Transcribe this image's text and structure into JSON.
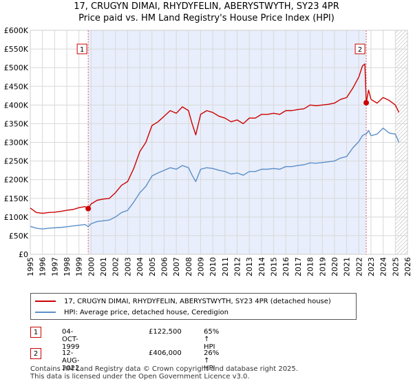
{
  "chart_data": {
    "type": "line",
    "title": "17, CRUGYN DIMAI, RHYDYFELIN, ABERYSTWYTH, SY23 4PR",
    "subtitle": "Price paid vs. HM Land Registry's House Price Index (HPI)",
    "xlim": [
      1995,
      2026
    ],
    "ylim": [
      0,
      600000
    ],
    "x_ticks": [
      "1995",
      "1996",
      "1997",
      "1998",
      "1999",
      "2000",
      "2001",
      "2002",
      "2003",
      "2004",
      "2005",
      "2006",
      "2007",
      "2008",
      "2009",
      "2010",
      "2011",
      "2012",
      "2013",
      "2014",
      "2015",
      "2016",
      "2017",
      "2018",
      "2019",
      "2020",
      "2021",
      "2022",
      "2023",
      "2024",
      "2025",
      "2026"
    ],
    "y_ticks": [
      {
        "value": 0,
        "label": "£0"
      },
      {
        "value": 50000,
        "label": "£50K"
      },
      {
        "value": 100000,
        "label": "£100K"
      },
      {
        "value": 150000,
        "label": "£150K"
      },
      {
        "value": 200000,
        "label": "£200K"
      },
      {
        "value": 250000,
        "label": "£250K"
      },
      {
        "value": 300000,
        "label": "£300K"
      },
      {
        "value": 350000,
        "label": "£350K"
      },
      {
        "value": 400000,
        "label": "£400K"
      },
      {
        "value": 450000,
        "label": "£450K"
      },
      {
        "value": 500000,
        "label": "£500K"
      },
      {
        "value": 550000,
        "label": "£550K"
      },
      {
        "value": 600000,
        "label": "£600K"
      }
    ],
    "shaded_range": [
      1999.76,
      2022.61
    ],
    "hatched_from": 2025.0,
    "series": [
      {
        "name": "17, CRUGYN DIMAI, RHYDYFELIN, ABERYSTWYTH, SY23 4PR (detached house)",
        "color": "#cc0000",
        "x": [
          1995.0,
          1995.5,
          1996.0,
          1996.5,
          1997.0,
          1997.5,
          1998.0,
          1998.5,
          1999.0,
          1999.5,
          1999.76,
          2000.0,
          2000.5,
          2001.0,
          2001.5,
          2002.0,
          2002.5,
          2003.0,
          2003.5,
          2004.0,
          2004.5,
          2005.0,
          2005.5,
          2006.0,
          2006.5,
          2007.0,
          2007.5,
          2008.0,
          2008.3,
          2008.6,
          2009.0,
          2009.5,
          2010.0,
          2010.5,
          2011.0,
          2011.5,
          2012.0,
          2012.5,
          2013.0,
          2013.5,
          2014.0,
          2014.5,
          2015.0,
          2015.5,
          2016.0,
          2016.5,
          2017.0,
          2017.5,
          2018.0,
          2018.5,
          2019.0,
          2019.5,
          2020.0,
          2020.5,
          2021.0,
          2021.5,
          2022.0,
          2022.3,
          2022.5,
          2022.61,
          2022.8,
          2023.0,
          2023.5,
          2024.0,
          2024.5,
          2025.0,
          2025.3
        ],
        "y": [
          124000,
          112000,
          110000,
          112000,
          113000,
          115000,
          118000,
          120000,
          125000,
          128000,
          122500,
          135000,
          145000,
          148000,
          150000,
          165000,
          185000,
          195000,
          230000,
          275000,
          300000,
          345000,
          355000,
          370000,
          385000,
          378000,
          395000,
          385000,
          350000,
          320000,
          375000,
          385000,
          380000,
          370000,
          365000,
          355000,
          360000,
          350000,
          365000,
          365000,
          375000,
          375000,
          378000,
          375000,
          385000,
          385000,
          388000,
          390000,
          400000,
          398000,
          400000,
          402000,
          405000,
          415000,
          420000,
          445000,
          475000,
          505000,
          510000,
          406000,
          440000,
          415000,
          405000,
          420000,
          412000,
          400000,
          380000
        ]
      },
      {
        "name": "HPI: Average price, detached house, Ceredigion",
        "color": "#5b8fc9",
        "x": [
          1995.0,
          1995.5,
          1996.0,
          1996.5,
          1997.0,
          1997.5,
          1998.0,
          1998.5,
          1999.0,
          1999.5,
          1999.76,
          2000.0,
          2000.5,
          2001.0,
          2001.5,
          2002.0,
          2002.5,
          2003.0,
          2003.5,
          2004.0,
          2004.5,
          2005.0,
          2005.5,
          2006.0,
          2006.5,
          2007.0,
          2007.5,
          2008.0,
          2008.3,
          2008.6,
          2009.0,
          2009.5,
          2010.0,
          2010.5,
          2011.0,
          2011.5,
          2012.0,
          2012.5,
          2013.0,
          2013.5,
          2014.0,
          2014.5,
          2015.0,
          2015.5,
          2016.0,
          2016.5,
          2017.0,
          2017.5,
          2018.0,
          2018.5,
          2019.0,
          2019.5,
          2020.0,
          2020.5,
          2021.0,
          2021.5,
          2022.0,
          2022.3,
          2022.5,
          2022.61,
          2022.8,
          2023.0,
          2023.5,
          2024.0,
          2024.5,
          2025.0,
          2025.3
        ],
        "y": [
          75000,
          70000,
          68000,
          70000,
          71000,
          72000,
          74000,
          76000,
          78000,
          80000,
          74300,
          82000,
          88000,
          90000,
          92000,
          100000,
          112000,
          118000,
          140000,
          165000,
          182000,
          210000,
          218000,
          225000,
          232000,
          228000,
          238000,
          232000,
          212000,
          195000,
          228000,
          232000,
          230000,
          225000,
          222000,
          215000,
          218000,
          212000,
          222000,
          222000,
          228000,
          228000,
          230000,
          228000,
          235000,
          235000,
          238000,
          240000,
          245000,
          244000,
          246000,
          248000,
          250000,
          258000,
          262000,
          285000,
          302000,
          318000,
          322000,
          322000,
          332000,
          318000,
          322000,
          338000,
          325000,
          322000,
          300000
        ]
      }
    ],
    "annotations": [
      {
        "label": "1",
        "x": 1999.76,
        "y": 122500
      },
      {
        "label": "2",
        "x": 2022.61,
        "y": 406000
      }
    ]
  },
  "legend": {
    "items": [
      {
        "label": "17, CRUGYN DIMAI, RHYDYFELIN, ABERYSTWYTH, SY23 4PR (detached house)",
        "color": "#cc0000"
      },
      {
        "label": "HPI: Average price, detached house, Ceredigion",
        "color": "#5b8fc9"
      }
    ]
  },
  "sales": [
    {
      "num": "1",
      "date": "04-OCT-1999",
      "price": "£122,500",
      "hpi": "65% ↑ HPI"
    },
    {
      "num": "2",
      "date": "12-AUG-2022",
      "price": "£406,000",
      "hpi": "26% ↑ HPI"
    }
  ],
  "footer": {
    "line1": "Contains HM Land Registry data © Crown copyright and database right 2025.",
    "line2": "This data is licensed under the Open Government Licence v3.0."
  }
}
